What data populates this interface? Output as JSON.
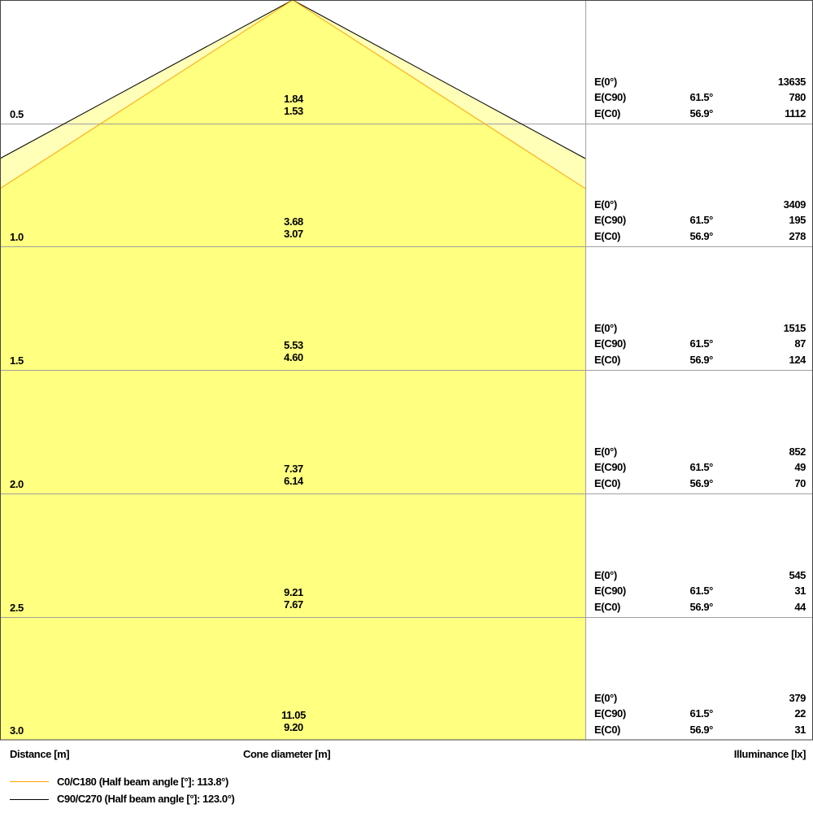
{
  "colors": {
    "c0_line": "#ffa500",
    "c90_line": "#000000",
    "c0_fill": "#ffff80",
    "c90_fill": "#ffffb8",
    "grid": "#a0a0a0"
  },
  "half_angles": {
    "c0": 113.8,
    "c90": 123.0
  },
  "rows": [
    {
      "distance": "0.5",
      "cone_c90": "1.84",
      "cone_c0": "1.53",
      "e0_label": "E(0°)",
      "e0": "13635",
      "ec90_label": "E(C90)",
      "ec90_angle": "61.5°",
      "ec90": "780",
      "ec0_label": "E(C0)",
      "ec0_angle": "56.9°",
      "ec0": "1112"
    },
    {
      "distance": "1.0",
      "cone_c90": "3.68",
      "cone_c0": "3.07",
      "e0_label": "E(0°)",
      "e0": "3409",
      "ec90_label": "E(C90)",
      "ec90_angle": "61.5°",
      "ec90": "195",
      "ec0_label": "E(C0)",
      "ec0_angle": "56.9°",
      "ec0": "278"
    },
    {
      "distance": "1.5",
      "cone_c90": "5.53",
      "cone_c0": "4.60",
      "e0_label": "E(0°)",
      "e0": "1515",
      "ec90_label": "E(C90)",
      "ec90_angle": "61.5°",
      "ec90": "87",
      "ec0_label": "E(C0)",
      "ec0_angle": "56.9°",
      "ec0": "124"
    },
    {
      "distance": "2.0",
      "cone_c90": "7.37",
      "cone_c0": "6.14",
      "e0_label": "E(0°)",
      "e0": "852",
      "ec90_label": "E(C90)",
      "ec90_angle": "61.5°",
      "ec90": "49",
      "ec0_label": "E(C0)",
      "ec0_angle": "56.9°",
      "ec0": "70"
    },
    {
      "distance": "2.5",
      "cone_c90": "9.21",
      "cone_c0": "7.67",
      "e0_label": "E(0°)",
      "e0": "545",
      "ec90_label": "E(C90)",
      "ec90_angle": "61.5°",
      "ec90": "31",
      "ec0_label": "E(C0)",
      "ec0_angle": "56.9°",
      "ec0": "44"
    },
    {
      "distance": "3.0",
      "cone_c90": "11.05",
      "cone_c0": "9.20",
      "e0_label": "E(0°)",
      "e0": "379",
      "ec90_label": "E(C90)",
      "ec90_angle": "61.5°",
      "ec90": "22",
      "ec0_label": "E(C0)",
      "ec0_angle": "56.9°",
      "ec0": "31"
    }
  ],
  "labels": {
    "distance": "Distance [m]",
    "cone": "Cone diameter [m]",
    "illuminance": "Illuminance [lx]"
  },
  "legend": [
    {
      "label": "C0/C180 (Half beam angle [°]: 113.8°)",
      "color": "#ffa500"
    },
    {
      "label": "C90/C270 (Half beam angle [°]: 123.0°)",
      "color": "#000000"
    }
  ]
}
